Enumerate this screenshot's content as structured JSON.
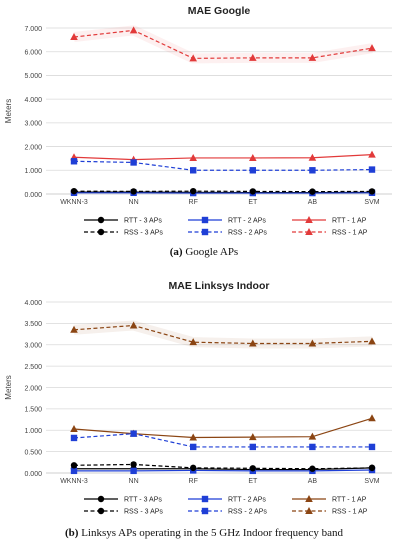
{
  "captions": [
    {
      "label": "(a)",
      "text": " Google APs"
    },
    {
      "label": "(b)",
      "text": " Linksys APs operating in the 5 GHz Indoor frequency band"
    }
  ],
  "colors": {
    "rtt_line": "#000000",
    "blue": "#1f3fd6",
    "red": "#e23a3a",
    "brown": "#8b4513",
    "grid": "#d9d9d9",
    "axis_text": "#444444"
  },
  "chart_data": [
    {
      "type": "line",
      "title": "MAE Google",
      "xlabel": "",
      "ylabel": "Meters",
      "categories": [
        "WKNN-3",
        "NN",
        "RF",
        "ET",
        "AB",
        "SVM"
      ],
      "ylim": [
        0,
        7
      ],
      "yticks": [
        "0.000",
        "1.000",
        "2.000",
        "3.000",
        "4.000",
        "5.000",
        "6.000",
        "7.000"
      ],
      "grid": true,
      "legend_position": "bottom",
      "series": [
        {
          "name": "RTT - 3 APs",
          "values": [
            0.08,
            0.08,
            0.07,
            0.06,
            0.06,
            0.07
          ],
          "color": "#000000",
          "dash": false,
          "marker": "circle"
        },
        {
          "name": "RTT - 2 APs",
          "values": [
            0.05,
            0.05,
            0.04,
            0.04,
            0.04,
            0.05
          ],
          "color": "#1f3fd6",
          "dash": false,
          "marker": "square"
        },
        {
          "name": "RTT - 1 AP",
          "values": [
            1.55,
            1.45,
            1.52,
            1.52,
            1.53,
            1.66
          ],
          "color": "#e23a3a",
          "dash": false,
          "marker": "triangle"
        },
        {
          "name": "RSS - 3 APs",
          "values": [
            0.12,
            0.11,
            0.12,
            0.11,
            0.1,
            0.11
          ],
          "color": "#000000",
          "dash": true,
          "marker": "circle"
        },
        {
          "name": "RSS - 2 APs",
          "values": [
            1.38,
            1.33,
            1.0,
            1.0,
            1.0,
            1.03
          ],
          "color": "#1f3fd6",
          "dash": true,
          "marker": "square"
        },
        {
          "name": "RSS - 1 AP",
          "values": [
            6.62,
            6.9,
            5.72,
            5.74,
            5.74,
            6.15
          ],
          "color": "#e23a3a",
          "dash": true,
          "marker": "triangle"
        }
      ]
    },
    {
      "type": "line",
      "title": "MAE Linksys Indoor",
      "xlabel": "",
      "ylabel": "Meters",
      "categories": [
        "WKNN-3",
        "NN",
        "RF",
        "ET",
        "AB",
        "SVM"
      ],
      "ylim": [
        0,
        4
      ],
      "yticks": [
        "0.000",
        "0.500",
        "1.000",
        "1.500",
        "2.000",
        "2.500",
        "3.000",
        "3.500",
        "4.000"
      ],
      "grid": true,
      "legend_position": "bottom",
      "series": [
        {
          "name": "RTT - 3 APs",
          "values": [
            0.1,
            0.1,
            0.1,
            0.08,
            0.08,
            0.12
          ],
          "color": "#000000",
          "dash": false,
          "marker": "circle"
        },
        {
          "name": "RTT - 2 APs",
          "values": [
            0.05,
            0.05,
            0.06,
            0.05,
            0.05,
            0.07
          ],
          "color": "#1f3fd6",
          "dash": false,
          "marker": "square"
        },
        {
          "name": "RTT - 1 AP",
          "values": [
            1.03,
            0.92,
            0.83,
            0.84,
            0.85,
            1.28
          ],
          "color": "#8b4513",
          "dash": false,
          "marker": "triangle"
        },
        {
          "name": "RSS - 3 APs",
          "values": [
            0.18,
            0.2,
            0.12,
            0.11,
            0.1,
            0.12
          ],
          "color": "#000000",
          "dash": true,
          "marker": "circle"
        },
        {
          "name": "RSS - 2 APs",
          "values": [
            0.82,
            0.92,
            0.61,
            0.61,
            0.61,
            0.61
          ],
          "color": "#1f3fd6",
          "dash": true,
          "marker": "square"
        },
        {
          "name": "RSS - 1 AP",
          "values": [
            3.35,
            3.45,
            3.06,
            3.03,
            3.03,
            3.08
          ],
          "color": "#8b4513",
          "dash": true,
          "marker": "triangle"
        }
      ]
    }
  ]
}
